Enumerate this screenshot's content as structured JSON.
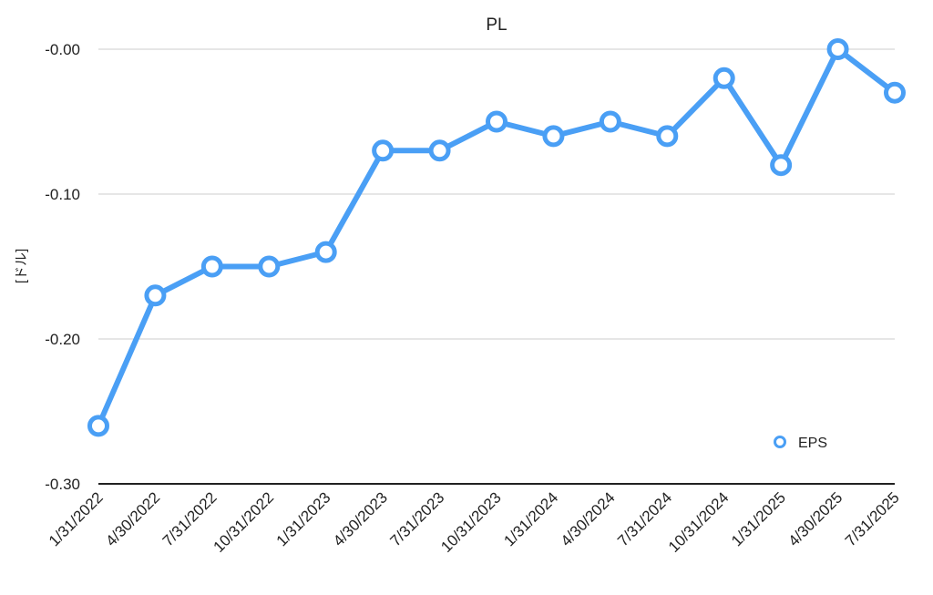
{
  "chart_data": {
    "type": "line",
    "title": "PL",
    "xlabel": "",
    "ylabel": "[ドル]",
    "categories": [
      "1/31/2022",
      "4/30/2022",
      "7/31/2022",
      "10/31/2022",
      "1/31/2023",
      "4/30/2023",
      "7/31/2023",
      "10/31/2023",
      "1/31/2024",
      "4/30/2024",
      "7/31/2024",
      "10/31/2024",
      "1/31/2025",
      "4/30/2025",
      "7/31/2025"
    ],
    "series": [
      {
        "name": "EPS",
        "color": "#4a9ff5",
        "values": [
          -0.26,
          -0.17,
          -0.15,
          -0.15,
          -0.14,
          -0.07,
          -0.07,
          -0.05,
          -0.06,
          -0.05,
          -0.06,
          -0.02,
          -0.08,
          0.0,
          -0.03
        ]
      }
    ],
    "ylim": [
      -0.3,
      0.0
    ],
    "yticks": [
      {
        "value": 0.0,
        "label": "-0.00"
      },
      {
        "value": -0.1,
        "label": "-0.10"
      },
      {
        "value": -0.2,
        "label": "-0.20"
      },
      {
        "value": -0.3,
        "label": "-0.30"
      }
    ],
    "grid": true,
    "legend_position": "bottom-right"
  }
}
